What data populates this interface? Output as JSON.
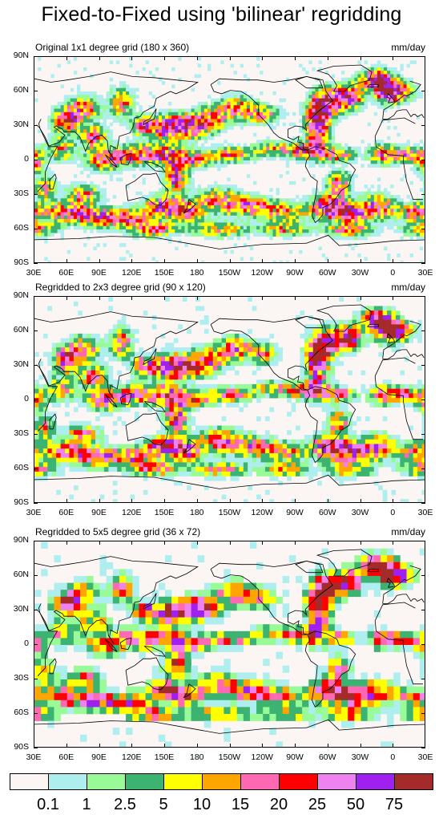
{
  "title": "Fixed-to-Fixed using 'bilinear' regridding",
  "units": "mm/day",
  "panels": [
    {
      "title": "Original 1x1 degree grid (180 x 360)",
      "cell_deg": 3
    },
    {
      "title": "Regridded to 2x3 degree grid (90 x 120)",
      "cell_deg": 4
    },
    {
      "title": "Regridded to 5x5 degree grid (36 x 72)",
      "cell_deg": 6
    }
  ],
  "lat_ticks": [
    "90N",
    "60N",
    "30N",
    "0",
    "30S",
    "60S",
    "90S"
  ],
  "lon_ticks": [
    "30E",
    "60E",
    "90E",
    "120E",
    "150E",
    "180",
    "150W",
    "120W",
    "90W",
    "60W",
    "30W",
    "0",
    "30E"
  ],
  "colorbar": {
    "colors": [
      "#fbf6f4",
      "#aeeeee",
      "#98fb98",
      "#3cb371",
      "#ffff00",
      "#ffa500",
      "#ff69b4",
      "#ff0000",
      "#ee82ee",
      "#a020f0",
      "#a52a2a"
    ],
    "labels": [
      "0.1",
      "1",
      "2.5",
      "5",
      "10",
      "15",
      "20",
      "25",
      "50",
      "75"
    ]
  },
  "projection": {
    "lon_start": 30,
    "lon_end": 390,
    "lat_min": -90,
    "lat_max": 90
  }
}
